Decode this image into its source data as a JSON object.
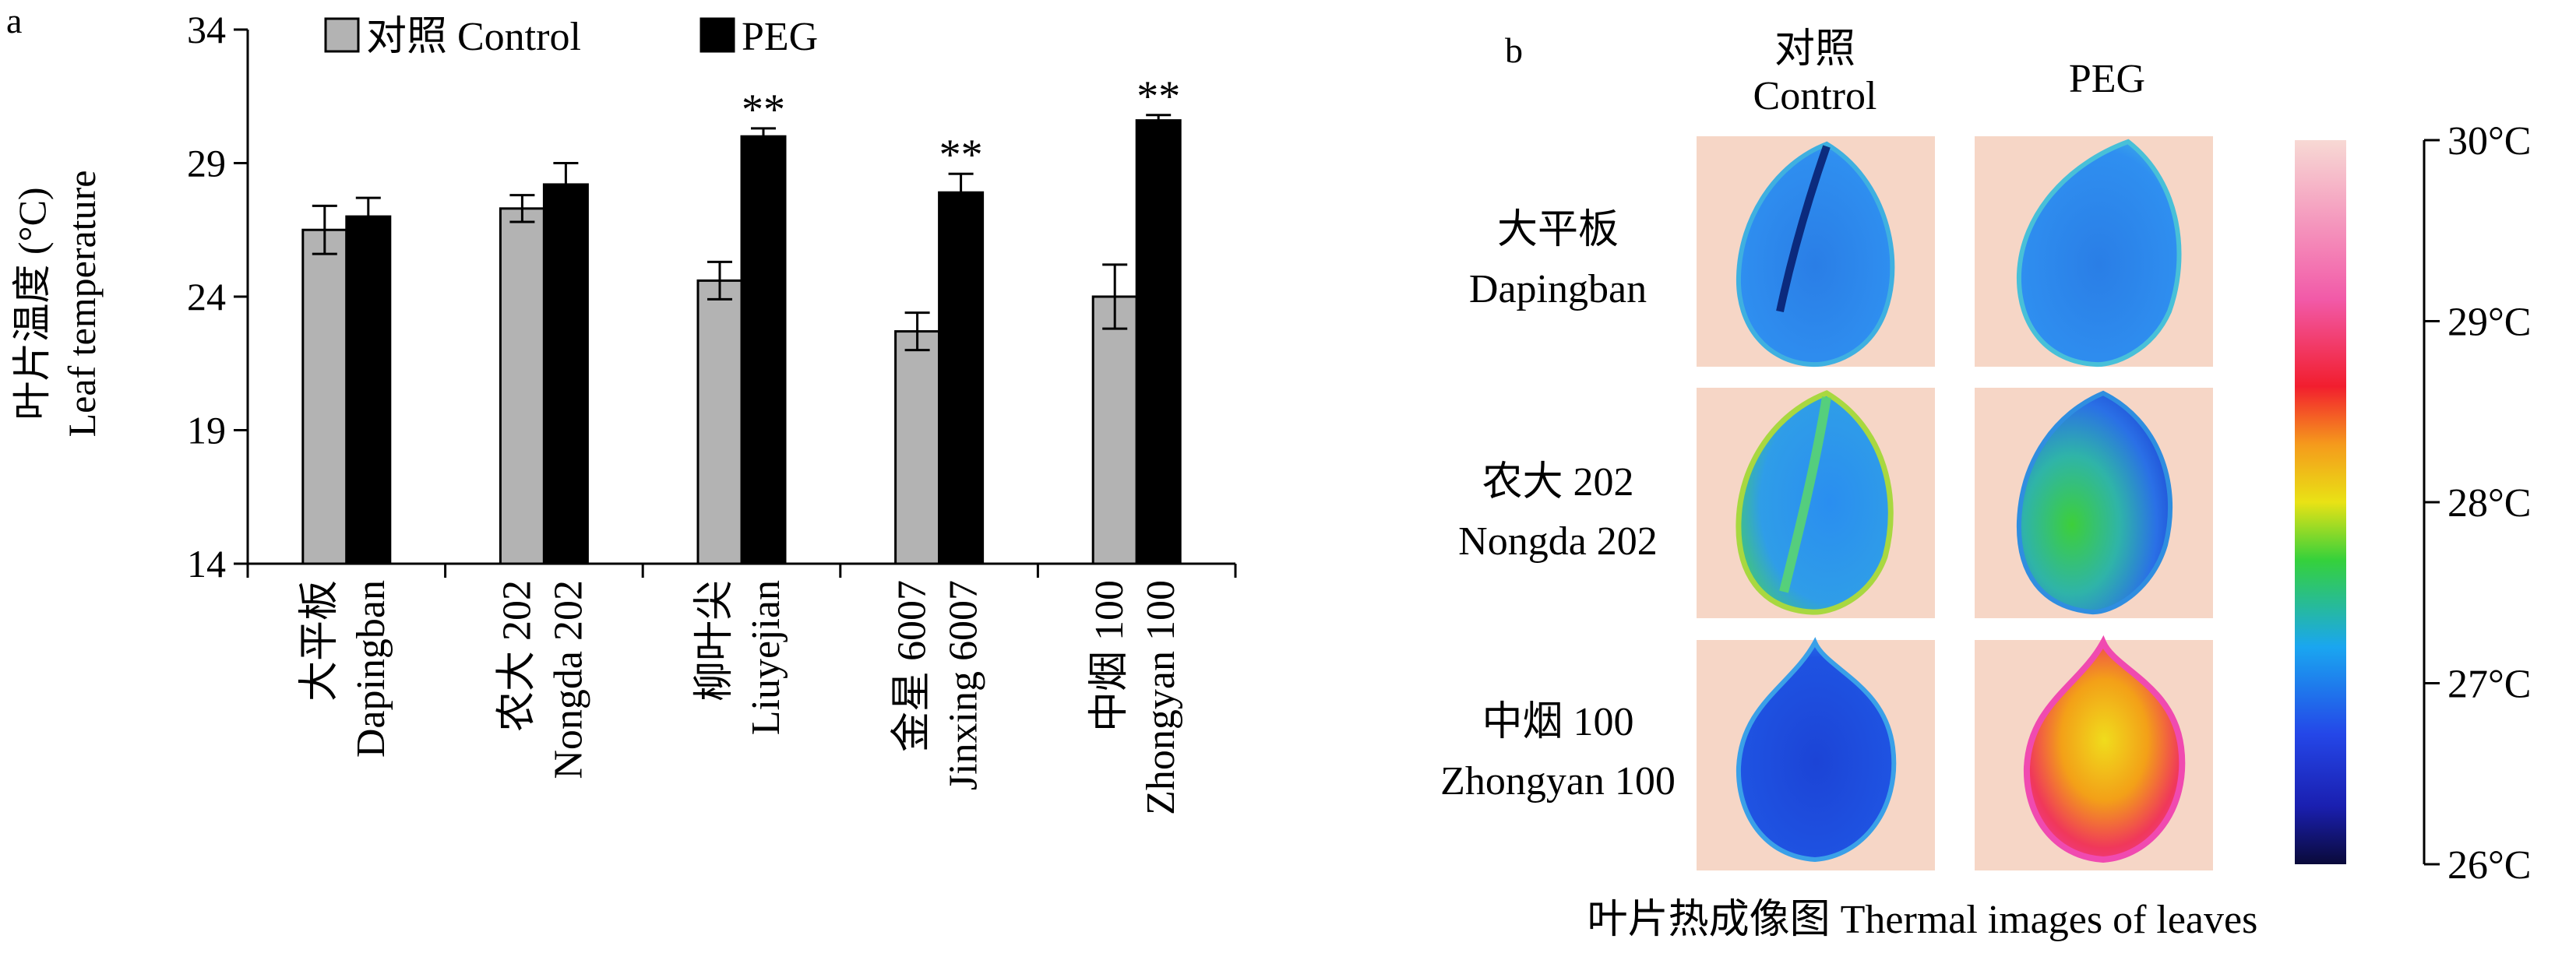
{
  "panel_a": {
    "label": "a",
    "ylabel_cn": "叶片温度 (°C)",
    "ylabel_en": "Leaf temperature",
    "legend": [
      {
        "label": "对照 Control",
        "color": "#b3b3b3"
      },
      {
        "label": "PEG",
        "color": "#000000"
      }
    ]
  },
  "chart_data": {
    "type": "bar",
    "categories": [
      {
        "cn": "大平板",
        "en": "Dapingban"
      },
      {
        "cn": "农大 202",
        "en": "Nongda 202"
      },
      {
        "cn": "柳叶尖",
        "en": "Liuyejian"
      },
      {
        "cn": "金星 6007",
        "en": "Jinxing 6007"
      },
      {
        "cn": "中烟 100",
        "en": "Zhongyan 100"
      }
    ],
    "series": [
      {
        "name": "对照 Control",
        "color": "#b3b3b3",
        "values": [
          26.5,
          27.3,
          24.6,
          22.7,
          24.0
        ],
        "errors": [
          0.9,
          0.5,
          0.7,
          0.7,
          1.2
        ],
        "annotations": [
          "",
          "",
          "",
          "",
          ""
        ]
      },
      {
        "name": "PEG",
        "color": "#000000",
        "values": [
          27.0,
          28.2,
          30.0,
          27.9,
          30.6
        ],
        "errors": [
          0.7,
          0.8,
          0.3,
          0.7,
          0.2
        ],
        "annotations": [
          "",
          "",
          "**",
          "**",
          "**"
        ]
      }
    ],
    "ylim": [
      14,
      34
    ],
    "yticks": [
      14,
      19,
      24,
      29,
      34
    ],
    "grid": false,
    "legend_position": "top"
  },
  "panel_b": {
    "label": "b",
    "col_headers": [
      {
        "line1": "对照",
        "line2": "Control"
      },
      {
        "line1": "PEG",
        "line2": ""
      }
    ],
    "row_labels": [
      {
        "cn": "大平板",
        "en": "Dapingban"
      },
      {
        "cn": "农大 202",
        "en": "Nongda 202"
      },
      {
        "cn": "中烟 100",
        "en": "Zhongyan 100"
      }
    ],
    "colorbar_ticks": [
      "30°C",
      "29°C",
      "28°C",
      "27°C",
      "26°C"
    ],
    "caption": "叶片热成像图 Thermal images of leaves"
  }
}
